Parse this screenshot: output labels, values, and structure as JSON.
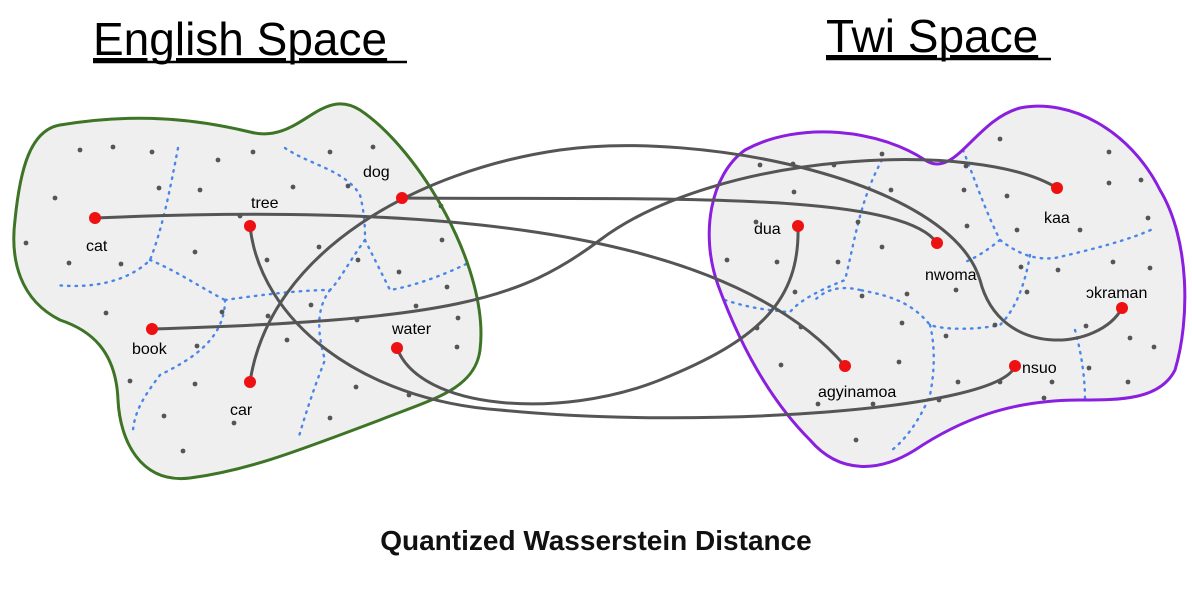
{
  "colors": {
    "english_outline": "#3d7426",
    "twi_outline": "#8a1fe0",
    "blob_fill": "#efefef",
    "key_point": "#ee1111",
    "connector": "#555555",
    "voronoi": "#4a86e8"
  },
  "english": {
    "title": "English Space",
    "words": [
      "cat",
      "tree",
      "dog",
      "book",
      "water",
      "car"
    ]
  },
  "twi": {
    "title": "Twi Space",
    "words": [
      "dua",
      "kaa",
      "nwoma",
      "ɔkraman",
      "agyinamoa",
      "nsuo"
    ]
  },
  "alignment": [
    [
      "cat",
      "agyinamoa"
    ],
    [
      "tree",
      "nsuo"
    ],
    [
      "dog",
      "nwoma"
    ],
    [
      "book",
      "kaa"
    ],
    [
      "water",
      "dua"
    ],
    [
      "car",
      "ɔkraman"
    ]
  ],
  "caption": "Quantized Wasserstein Distance"
}
